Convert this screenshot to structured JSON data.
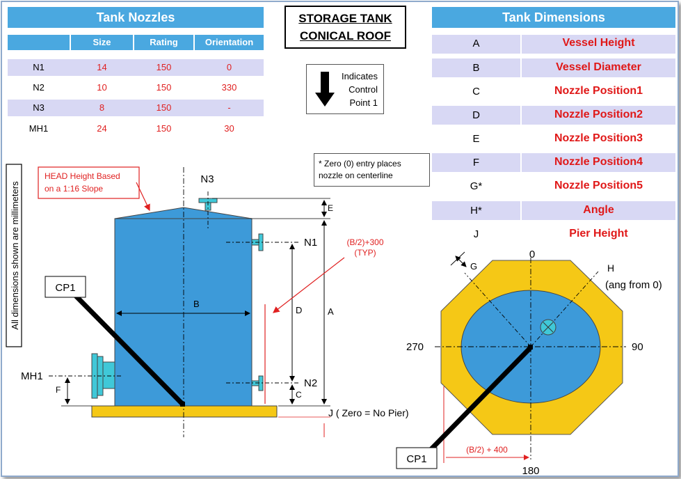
{
  "title": {
    "line1": "STORAGE TANK",
    "line2": "CONICAL ROOF"
  },
  "nozzles_table": {
    "title": "Tank Nozzles",
    "headers": [
      "Size",
      "Rating",
      "Orientation"
    ],
    "rows": [
      {
        "name": "N1",
        "size": "14",
        "rating": "150",
        "orientation": "0"
      },
      {
        "name": "N2",
        "size": "10",
        "rating": "150",
        "orientation": "330"
      },
      {
        "name": "N3",
        "size": "8",
        "rating": "150",
        "orientation": "-"
      },
      {
        "name": "MH1",
        "size": "24",
        "rating": "150",
        "orientation": "30"
      }
    ]
  },
  "dimensions_table": {
    "title": "Tank Dimensions",
    "rows": [
      {
        "key": "A",
        "name": "Vessel Height"
      },
      {
        "key": "B",
        "name": "Vessel Diameter"
      },
      {
        "key": "C",
        "name": "Nozzle Position1"
      },
      {
        "key": "D",
        "name": "Nozzle Position2"
      },
      {
        "key": "E",
        "name": "Nozzle Position3"
      },
      {
        "key": "F",
        "name": "Nozzle Position4"
      },
      {
        "key": "G*",
        "name": "Nozzle Position5"
      },
      {
        "key": "H*",
        "name": "Angle"
      },
      {
        "key": "J",
        "name": "Pier Height"
      }
    ]
  },
  "legend": {
    "line1": "Indicates",
    "line2": "Control",
    "line3": "Point 1"
  },
  "note": {
    "line1": "* Zero (0) entry places",
    "line2": "nozzle on centerline"
  },
  "units_note": "All dimensions shown are millimeters",
  "head_note": {
    "line1": "HEAD Height Based",
    "line2": "on a 1:16 Slope"
  },
  "elevation": {
    "n3": "N3",
    "n1": "N1",
    "n2": "N2",
    "mh1": "MH1",
    "cp1": "CP1",
    "dim_a": "A",
    "dim_b": "B",
    "dim_c": "C",
    "dim_d": "D",
    "dim_e": "E",
    "dim_f": "F",
    "offset_line1": "(B/2)+300",
    "offset_line2": "(TYP)",
    "pier_note": "J ( Zero = No Pier)"
  },
  "plan": {
    "deg_0": "0",
    "deg_90": "90",
    "deg_180": "180",
    "deg_270": "270",
    "g_label": "G",
    "h_label": "H",
    "h_note": "(ang from 0)",
    "cp1": "CP1",
    "offset": "(B/2) + 400"
  },
  "colors": {
    "header_blue": "#4aa8e0",
    "row_lavender": "#d8d8f4",
    "tank_blue": "#3d9ad9",
    "pier_yellow": "#f5c816",
    "text_red": "#e02020"
  }
}
